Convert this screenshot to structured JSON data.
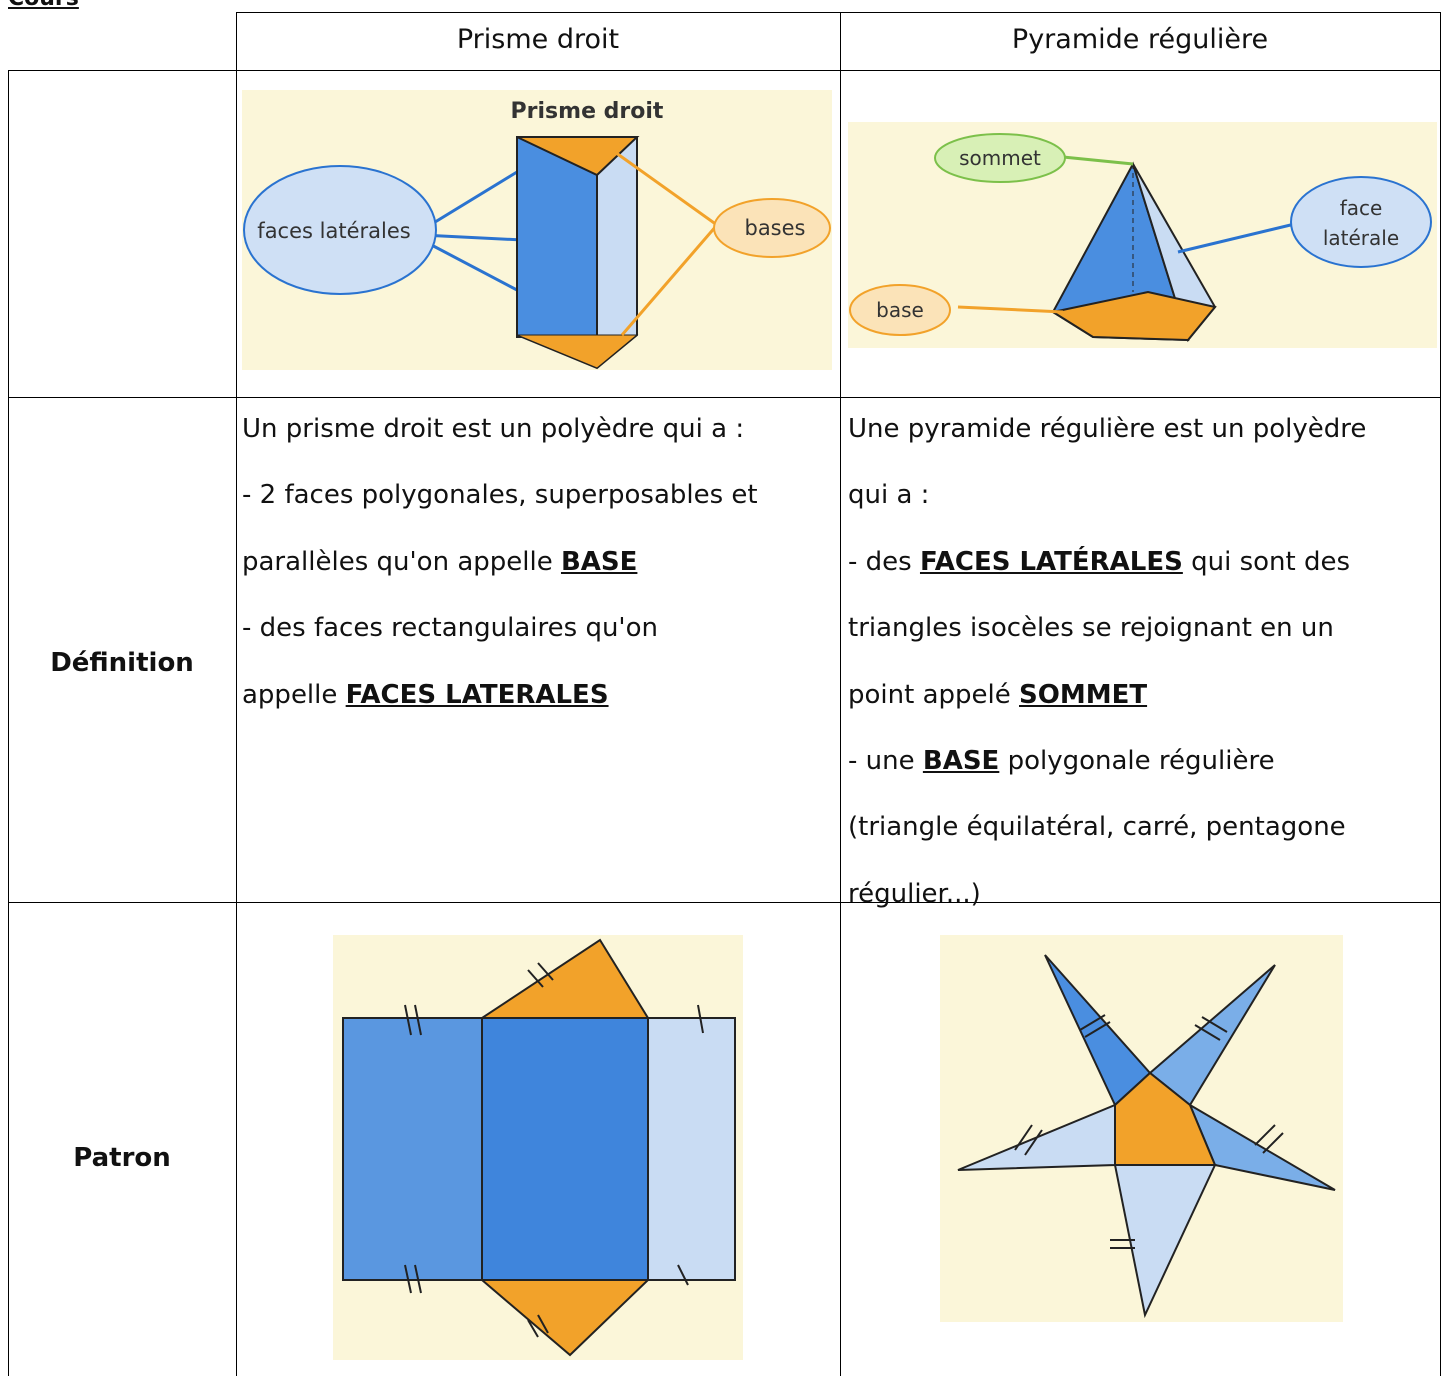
{
  "heading": "Cours",
  "table": {
    "header": [
      "Prisme droit",
      "Pyramide régulière"
    ],
    "figures": {
      "prism": {
        "title": "Prisme droit",
        "labels": [
          "faces latérales",
          "bases"
        ]
      },
      "pyramid": {
        "labels": {
          "apex": "sommet",
          "face": [
            "face",
            "latérale"
          ],
          "base": "base"
        }
      }
    },
    "definition": {
      "label": "Définition",
      "cells": [
        [
          [
            {
              "text": "Un prisme droit est un polyèdre qui a :"
            }
          ],
          [
            {
              "text": "- 2 faces polygonales, superposables et"
            }
          ],
          [
            {
              "text": "parallèles qu'on appelle "
            },
            {
              "text": "BASE",
              "emphasis": true
            }
          ],
          [
            {
              "text": "- des faces rectangulaires qu'on"
            }
          ],
          [
            {
              "text": "appelle "
            },
            {
              "text": "FACES LATERALES",
              "emphasis": true
            }
          ]
        ],
        [
          [
            {
              "text": "Une pyramide régulière est un polyèdre"
            }
          ],
          [
            {
              "text": "qui a :"
            }
          ],
          [
            {
              "text": "- des "
            },
            {
              "text": "FACES LATÉRALES",
              "emphasis": true
            },
            {
              "text": " qui sont des"
            }
          ],
          [
            {
              "text": "triangles isocèles se rejoignant en un"
            }
          ],
          [
            {
              "text": "point appelé "
            },
            {
              "text": "SOMMET",
              "emphasis": true
            }
          ],
          [
            {
              "text": "- une "
            },
            {
              "text": "BASE",
              "emphasis": true
            },
            {
              "text": " polygonale régulière"
            }
          ],
          [
            {
              "text": "(triangle équilatéral, carré, pentagone"
            }
          ],
          [
            {
              "text": "régulier...)"
            }
          ]
        ]
      ]
    },
    "pattern": {
      "label": "Patron"
    }
  }
}
